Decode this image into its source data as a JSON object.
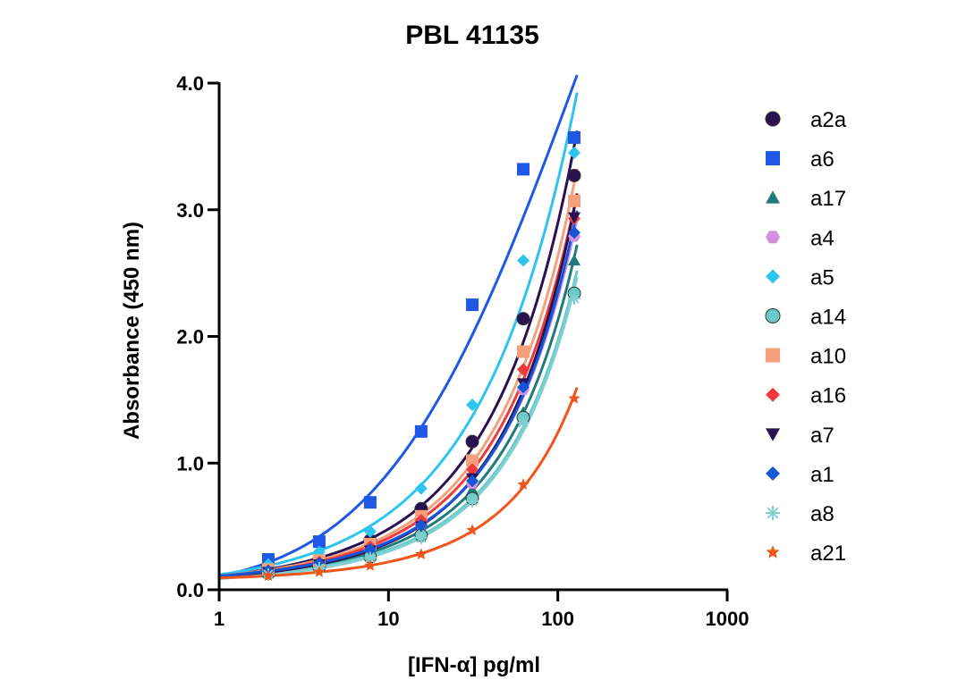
{
  "chart_data": {
    "type": "scatter",
    "title": "PBL 41135",
    "xlabel": "[IFN-α] pg/ml",
    "ylabel": "Absorbance (450 nm)",
    "xscale": "log",
    "xlim": [
      1,
      1000
    ],
    "ylim": [
      0,
      4
    ],
    "xticks": [
      1,
      10,
      100,
      1000
    ],
    "xtick_labels": [
      "1",
      "10",
      "100",
      "1000"
    ],
    "yticks": [
      0,
      1,
      2,
      3,
      4
    ],
    "ytick_labels": [
      "0.0",
      "1.0",
      "2.0",
      "3.0",
      "4.0"
    ],
    "grid": false,
    "legend_position": "right",
    "x": [
      1.95,
      3.9,
      7.8,
      15.6,
      31.25,
      62.5,
      125
    ],
    "series": [
      {
        "name": "a2a",
        "marker": "circle",
        "color": "#2a1150",
        "values": [
          0.17,
          0.24,
          0.39,
          0.64,
          1.17,
          2.14,
          3.27
        ]
      },
      {
        "name": "a6",
        "marker": "square",
        "color": "#1f57e6",
        "values": [
          0.24,
          0.38,
          0.69,
          1.25,
          2.25,
          3.32,
          3.57
        ]
      },
      {
        "name": "a17",
        "marker": "triangle-up",
        "color": "#217a7a",
        "values": [
          0.14,
          0.19,
          0.29,
          0.47,
          0.79,
          1.4,
          2.6
        ]
      },
      {
        "name": "a4",
        "marker": "hexagon",
        "color": "#d68fe0",
        "values": [
          0.15,
          0.21,
          0.33,
          0.52,
          0.84,
          1.58,
          2.79
        ]
      },
      {
        "name": "a5",
        "marker": "diamond",
        "color": "#2ec4f0",
        "values": [
          0.2,
          0.3,
          0.46,
          0.8,
          1.46,
          2.6,
          3.45
        ]
      },
      {
        "name": "a14",
        "marker": "circle",
        "color": "#6cc9c9",
        "values": [
          0.13,
          0.18,
          0.26,
          0.43,
          0.72,
          1.36,
          2.34
        ]
      },
      {
        "name": "a10",
        "marker": "square",
        "color": "#f5a07a",
        "values": [
          0.16,
          0.23,
          0.36,
          0.58,
          1.02,
          1.88,
          3.07
        ]
      },
      {
        "name": "a16",
        "marker": "diamond",
        "color": "#ee3a3a",
        "values": [
          0.15,
          0.22,
          0.34,
          0.55,
          0.95,
          1.74,
          2.93
        ]
      },
      {
        "name": "a7",
        "marker": "triangle-down",
        "color": "#2a1150",
        "values": [
          0.14,
          0.2,
          0.31,
          0.5,
          0.88,
          1.63,
          2.94
        ]
      },
      {
        "name": "a1",
        "marker": "diamond",
        "color": "#1555d8",
        "values": [
          0.15,
          0.21,
          0.32,
          0.51,
          0.86,
          1.6,
          2.82
        ]
      },
      {
        "name": "a8",
        "marker": "asterisk",
        "color": "#7fd0d0",
        "values": [
          0.12,
          0.17,
          0.25,
          0.41,
          0.7,
          1.32,
          2.3
        ]
      },
      {
        "name": "a21",
        "marker": "star",
        "color": "#f2551a",
        "values": [
          0.11,
          0.14,
          0.19,
          0.28,
          0.47,
          0.83,
          1.51
        ]
      }
    ]
  }
}
